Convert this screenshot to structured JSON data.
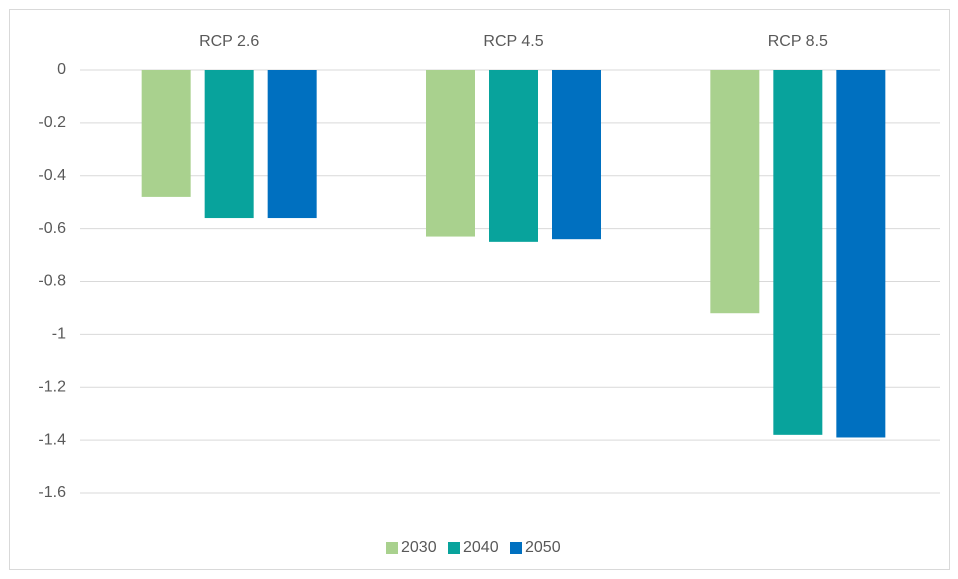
{
  "chart_data": {
    "type": "bar",
    "categories": [
      "RCP 2.6",
      "RCP 4.5",
      "RCP 8.5"
    ],
    "series": [
      {
        "name": "2030",
        "color": "#a9d18e",
        "values": [
          -0.48,
          -0.63,
          -0.92
        ]
      },
      {
        "name": "2040",
        "color": "#08a39c",
        "values": [
          -0.56,
          -0.65,
          -1.38
        ]
      },
      {
        "name": "2050",
        "color": "#0070c0",
        "values": [
          -0.56,
          -0.64,
          -1.39
        ]
      }
    ],
    "ylim": [
      -1.6,
      0
    ],
    "yticks": [
      0,
      -0.2,
      -0.4,
      -0.6,
      -0.8,
      -1,
      -1.2,
      -1.4,
      -1.6
    ],
    "grid": true,
    "legend": "bottom"
  }
}
